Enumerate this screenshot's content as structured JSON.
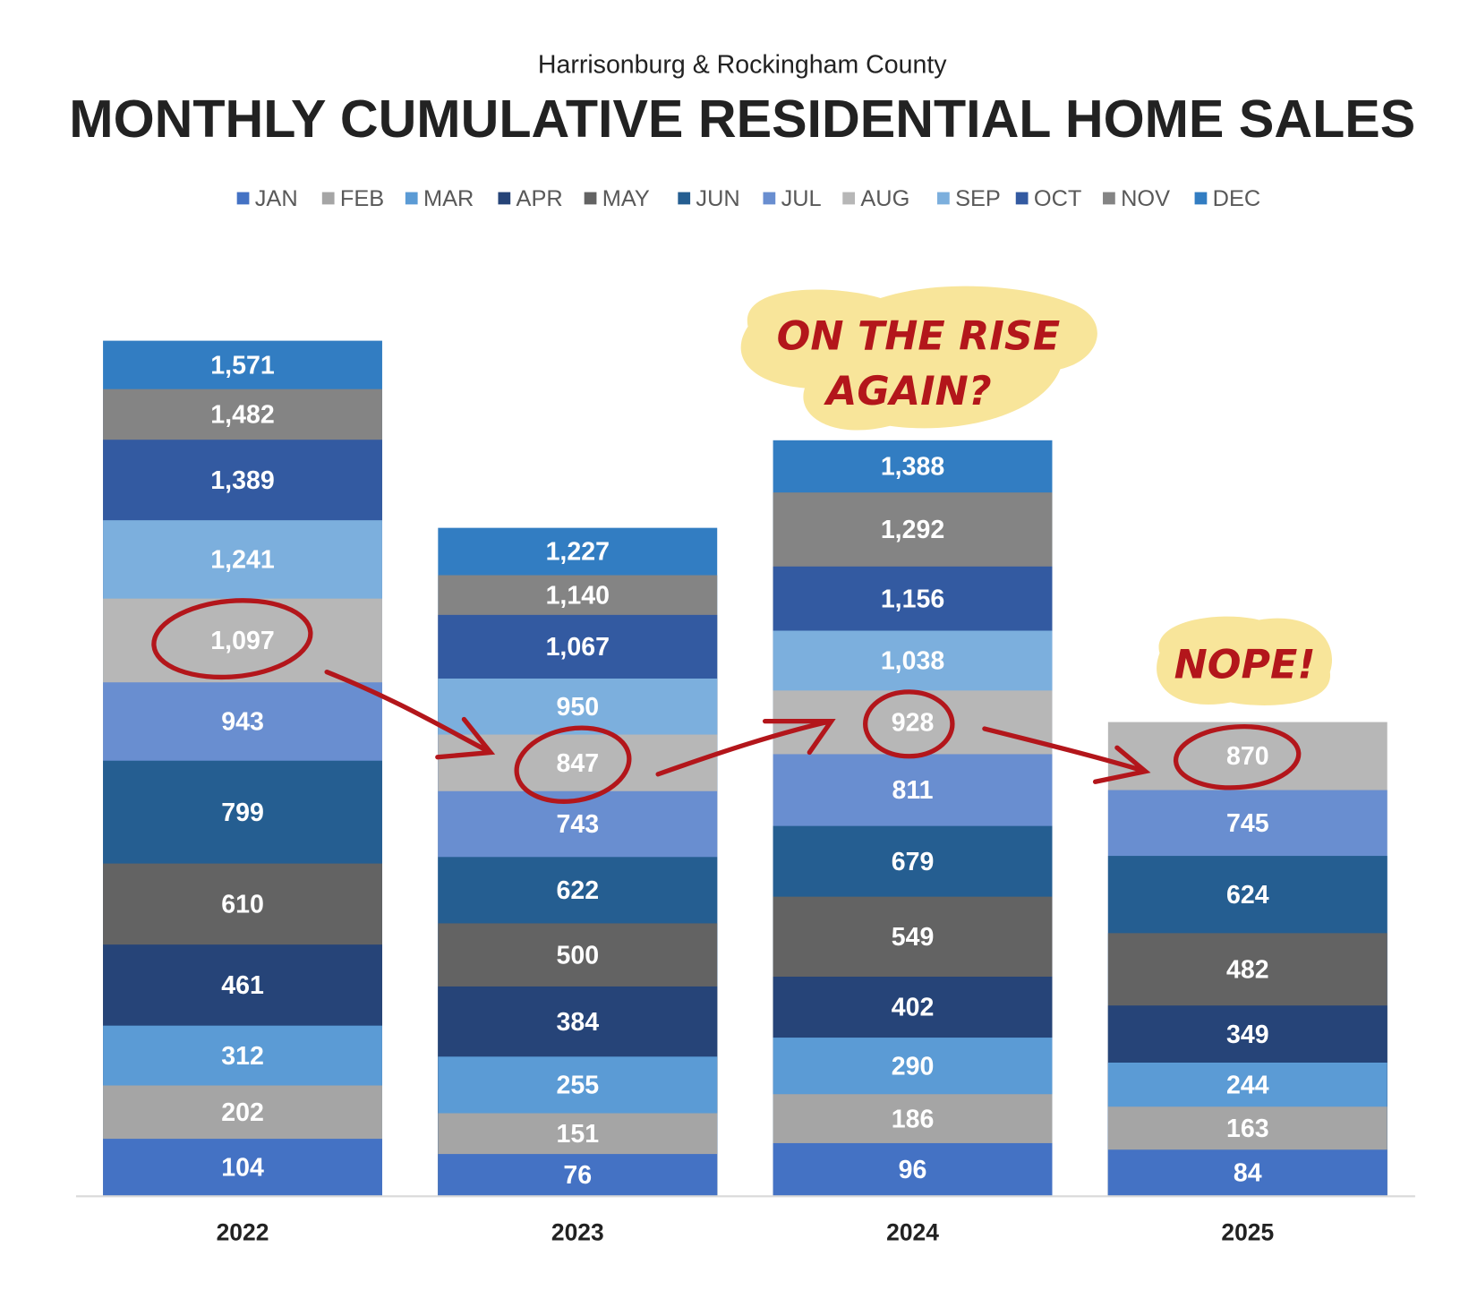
{
  "chart_data": {
    "type": "bar",
    "subtitle": "Harrisonburg & Rockingham County",
    "title": "MONTHLY CUMULATIVE RESIDENTIAL HOME SALES",
    "categories": [
      "2022",
      "2023",
      "2024",
      "2025"
    ],
    "series": [
      {
        "name": "JAN",
        "color": "#4472c4",
        "values": [
          104,
          76,
          96,
          84
        ]
      },
      {
        "name": "FEB",
        "color": "#a5a5a5",
        "values": [
          202,
          151,
          186,
          163
        ]
      },
      {
        "name": "MAR",
        "color": "#5b9bd5",
        "values": [
          312,
          255,
          290,
          244
        ]
      },
      {
        "name": "APR",
        "color": "#264478",
        "values": [
          461,
          384,
          402,
          349
        ]
      },
      {
        "name": "MAY",
        "color": "#636363",
        "values": [
          610,
          500,
          549,
          482
        ]
      },
      {
        "name": "JUN",
        "color": "#255e91",
        "values": [
          799,
          622,
          679,
          624
        ]
      },
      {
        "name": "JUL",
        "color": "#698ed0",
        "values": [
          943,
          743,
          811,
          745
        ]
      },
      {
        "name": "AUG",
        "color": "#b7b7b7",
        "values": [
          1097,
          847,
          928,
          870
        ],
        "value_labels": [
          "1,097",
          null,
          null,
          null
        ]
      },
      {
        "name": "SEP",
        "color": "#7cafdd",
        "values": [
          1241,
          950,
          1038,
          null
        ],
        "value_labels": [
          "1,241",
          null,
          "1,038",
          null
        ]
      },
      {
        "name": "OCT",
        "color": "#335aa1",
        "values": [
          1389,
          1067,
          1156,
          null
        ],
        "value_labels": [
          "1,389",
          "1,067",
          "1,156",
          null
        ]
      },
      {
        "name": "NOV",
        "color": "#848484",
        "values": [
          1482,
          1140,
          1292,
          null
        ],
        "value_labels": [
          "1,482",
          "1,140",
          "1,292",
          null
        ]
      },
      {
        "name": "DEC",
        "color": "#327dc2",
        "values": [
          1571,
          1227,
          1388,
          null
        ],
        "value_labels": [
          "1,571",
          "1,227",
          "1,388",
          null
        ]
      }
    ],
    "annotations": [
      "ON THE RISE",
      "AGAIN?",
      "NOPE!"
    ]
  }
}
